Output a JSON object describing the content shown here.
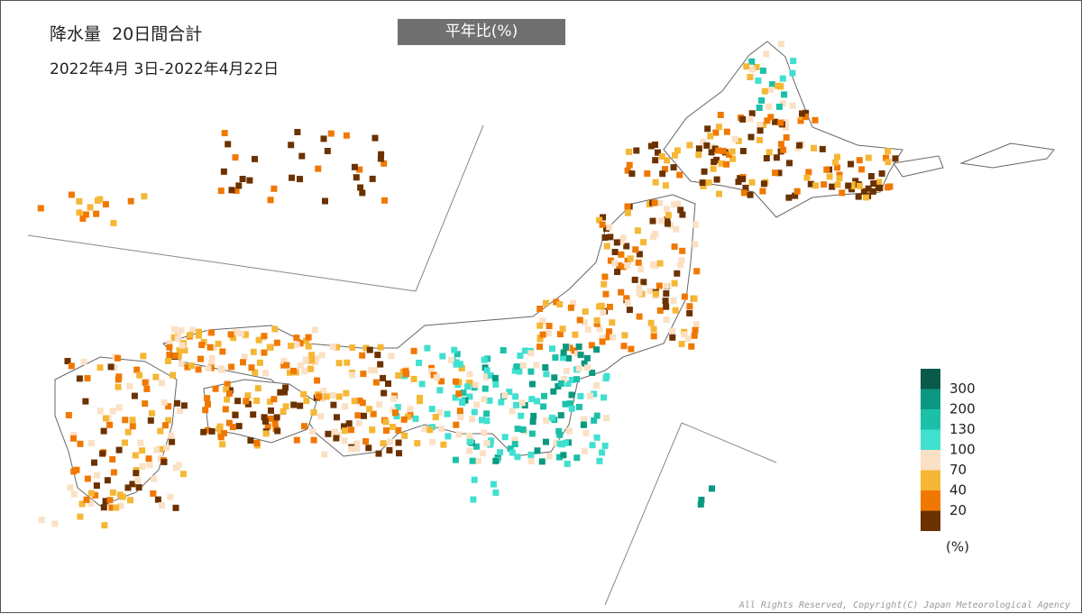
{
  "header": {
    "title": "降水量  20日間合計",
    "period": "2022年4月 3日-2022年4月22日",
    "badge": "平年比(%)"
  },
  "legend": {
    "ticks": [
      300,
      200,
      130,
      100,
      70,
      40,
      20
    ],
    "colors": [
      "#0a5a4a",
      "#0b9880",
      "#1cc0a8",
      "#40e0d0",
      "#fbe0c4",
      "#f5b735",
      "#f07800",
      "#6b3200"
    ],
    "unit": "(%)"
  },
  "footer": {
    "copyright": "All Rights Reserved, Copyright(C) Japan Meteorological Agency"
  }
}
